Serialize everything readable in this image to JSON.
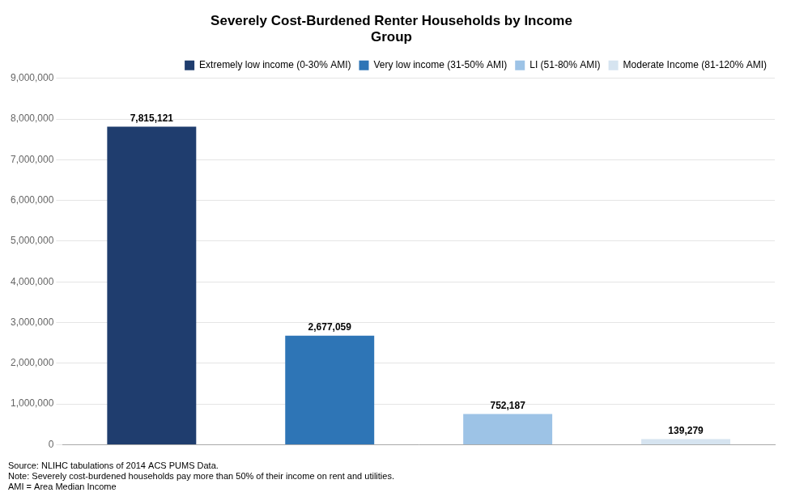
{
  "chart_data": {
    "type": "bar",
    "title": "Severely Cost-Burdened Renter Households by Income\nGroup",
    "categories": [
      "Extremely low income (0-30% AMI)",
      "Very low income (31-50% AMI)",
      "LI (51-80% AMI)",
      "Moderate Income (81-120% AMI)"
    ],
    "values": [
      7815121,
      2677059,
      752187,
      139279
    ],
    "value_labels": [
      "7,815,121",
      "2,677,059",
      "752,187",
      "139,279"
    ],
    "colors": [
      "#1F3D6E",
      "#2E75B6",
      "#9DC3E6",
      "#D6E4F0"
    ],
    "ylim": [
      0,
      9000000
    ],
    "yticks": [
      0,
      {
        "value": 1000000,
        "label": "1,000,000"
      },
      {
        "value": 2000000,
        "label": "2,000,000"
      },
      {
        "value": 3000000,
        "label": "3,000,000"
      },
      {
        "value": 4000000,
        "label": "4,000,000"
      },
      {
        "value": 5000000,
        "label": "5,000,000"
      },
      {
        "value": 6000000,
        "label": "6,000,000"
      },
      {
        "value": 7000000,
        "label": "7,000,000"
      },
      {
        "value": 8000000,
        "label": "8,000,000"
      },
      {
        "value": 9000000,
        "label": "9,000,000"
      }
    ],
    "grid": true,
    "legend": "upper right",
    "data_labels": true,
    "tick_labels": "y",
    "annotations": [
      "Source: NLIHC tabulations of 2014 ACS PUMS Data.",
      "Note: Severely cost-burdened households pay more than 50% of their income on rent and utilities.",
      "AMI = Area Median Income"
    ]
  }
}
